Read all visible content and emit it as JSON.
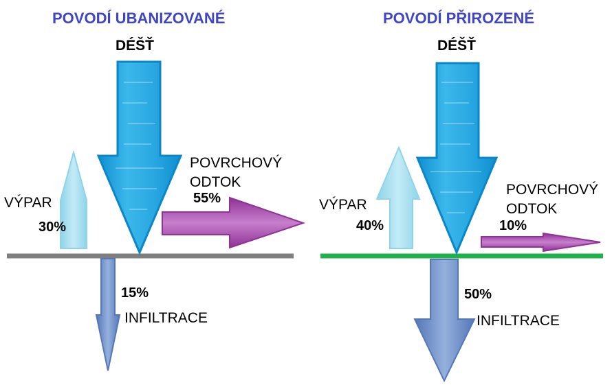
{
  "urban": {
    "title": "POVODÍ UBANIZOVANÉ",
    "rain_label": "DÉŠŤ",
    "evaporation": {
      "label": "VÝPAR",
      "percent": "30%",
      "value": 30
    },
    "runoff": {
      "label_line1": "POVRCHOVÝ",
      "label_line2": "ODTOK",
      "percent": "55%",
      "value": 55
    },
    "infiltration": {
      "label": "INFILTRACE",
      "percent": "15%",
      "value": 15
    },
    "ground_color": "#7f7f7f"
  },
  "natural": {
    "title": "POVODÍ PŘIROZENÉ",
    "rain_label": "DÉŠŤ",
    "evaporation": {
      "label": "VÝPAR",
      "percent": "40%",
      "value": 40
    },
    "runoff": {
      "label_line1": "POVRCHOVÝ",
      "label_line2": "ODTOK",
      "percent": "10%",
      "value": 10
    },
    "infiltration": {
      "label": "INFILTRACE",
      "percent": "50%",
      "value": 50
    },
    "ground_color": "#21b14c"
  },
  "colors": {
    "title": "#3f45c4",
    "rain": "#1aa3e0",
    "evaporation": "#a9dff0",
    "runoff": "#a43fa9",
    "infiltration": "#6688c6"
  }
}
